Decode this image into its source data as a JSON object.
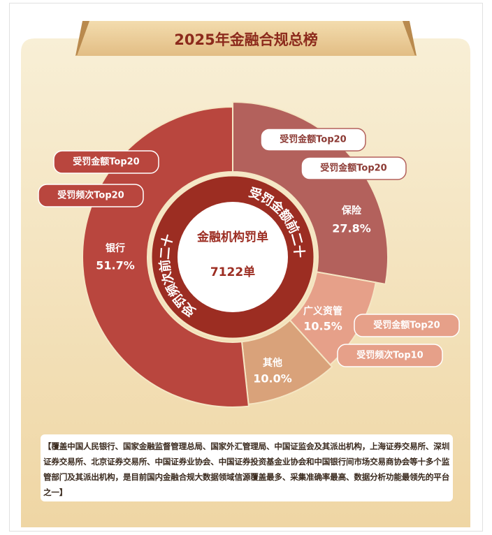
{
  "header": {
    "title": "2025年金融合规总榜"
  },
  "chart_data": {
    "type": "donut",
    "categories": [
      "保险",
      "广义资管",
      "其他",
      "银行"
    ],
    "values": [
      27.8,
      10.5,
      10.0,
      51.7
    ],
    "value_labels": [
      "27.8%",
      "10.5%",
      "10.0%",
      "51.7%"
    ],
    "colors": [
      "#b3615c",
      "#e6a089",
      "#d9a27a",
      "#b9463e"
    ],
    "center_title": "金融机构罚单",
    "center_value": "7122单",
    "ring_labels": [
      "受罚金额前二十",
      "受罚频次前二十"
    ],
    "tags": [
      [
        "受罚金额Top20",
        "受罚金额Top20"
      ],
      [
        "受罚金额Top20",
        "受罚频次Top10"
      ],
      [],
      [
        "受罚金额Top20",
        "受罚频次Top20"
      ]
    ]
  },
  "footnote": "【覆盖中国人民银行、国家金融监督管理总局、国家外汇管理局、中国证监会及其派出机构，上海证券交易所、深圳证券交易所、北京证券交易所、中国证券业协会、中国证券投资基金业协会和中国银行间市场交易商协会等十多个监管部门及其派出机构，是目前国内金融合规大数据领域信源覆盖最多、采集准确率最高、数据分析功能最领先的平台之一】"
}
